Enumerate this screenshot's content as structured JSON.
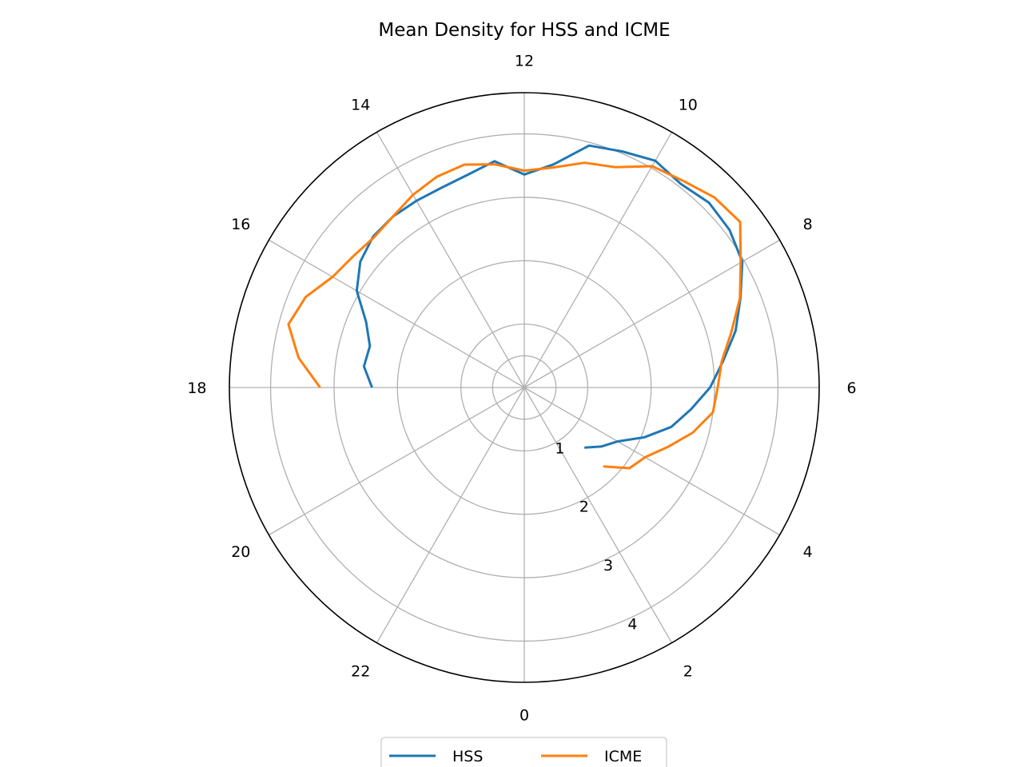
{
  "chart_data": {
    "type": "line",
    "subtype": "polar",
    "title": "Mean Density for HSS and ICME",
    "theta_unit": "hour",
    "theta_zero": "bottom",
    "theta_direction": "counterclockwise",
    "theta_ticks": [
      "0",
      "2",
      "4",
      "6",
      "8",
      "10",
      "12",
      "14",
      "16",
      "18",
      "20",
      "22"
    ],
    "r_ticks": [
      "1",
      "2",
      "3",
      "4"
    ],
    "rlim": [
      0,
      4.65
    ],
    "grid": true,
    "legend_position": "bottom-center",
    "series": [
      {
        "name": "HSS",
        "color": "#1f77b4",
        "points": [
          [
            3,
            1.34
          ],
          [
            3.5,
            1.53
          ],
          [
            4,
            1.7
          ],
          [
            4.5,
            2.05
          ],
          [
            5,
            2.4
          ],
          [
            5.5,
            2.65
          ],
          [
            6,
            2.93
          ],
          [
            6.5,
            3.16
          ],
          [
            7,
            3.45
          ],
          [
            7.5,
            3.69
          ],
          [
            8,
            3.97
          ],
          [
            8.5,
            4.08
          ],
          [
            9,
            4.12
          ],
          [
            9.5,
            4.05
          ],
          [
            10,
            4.13
          ],
          [
            10.5,
            4.03
          ],
          [
            11,
            3.95
          ],
          [
            11.5,
            3.55
          ],
          [
            12,
            3.36
          ],
          [
            12.5,
            3.6
          ],
          [
            13,
            3.47
          ],
          [
            13.5,
            3.41
          ],
          [
            14,
            3.4
          ],
          [
            14.5,
            3.4
          ],
          [
            15,
            3.37
          ],
          [
            15.5,
            3.26
          ],
          [
            16,
            3.05
          ],
          [
            16.5,
            2.7
          ],
          [
            17,
            2.52
          ],
          [
            17.5,
            2.55
          ],
          [
            18,
            2.4
          ]
        ]
      },
      {
        "name": "ICME",
        "color": "#ff7f0e",
        "points": [
          [
            3,
            1.76
          ],
          [
            3.5,
            2.09
          ],
          [
            4,
            2.2
          ],
          [
            4.5,
            2.45
          ],
          [
            5,
            2.75
          ],
          [
            5.5,
            3.0
          ],
          [
            6,
            3.05
          ],
          [
            6.5,
            3.14
          ],
          [
            7,
            3.38
          ],
          [
            7.5,
            3.68
          ],
          [
            8,
            3.94
          ],
          [
            8.5,
            4.29
          ],
          [
            9,
            4.24
          ],
          [
            9.5,
            4.11
          ],
          [
            10,
            4.03
          ],
          [
            10.5,
            3.76
          ],
          [
            11,
            3.67
          ],
          [
            11.5,
            3.5
          ],
          [
            12,
            3.42
          ],
          [
            12.5,
            3.55
          ],
          [
            13,
            3.64
          ],
          [
            13.5,
            3.6
          ],
          [
            14,
            3.51
          ],
          [
            14.5,
            3.4
          ],
          [
            15,
            3.35
          ],
          [
            15.5,
            3.4
          ],
          [
            16,
            3.49
          ],
          [
            16.5,
            3.73
          ],
          [
            17,
            3.85
          ],
          [
            17.5,
            3.59
          ],
          [
            18,
            3.22
          ]
        ]
      }
    ]
  }
}
